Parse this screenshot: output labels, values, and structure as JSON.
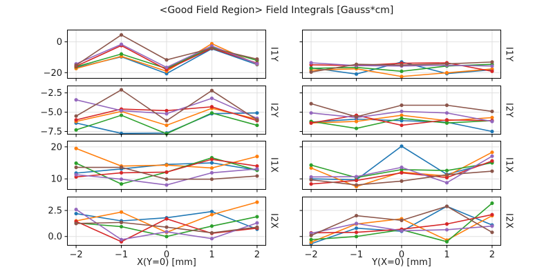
{
  "chart_data": {
    "type": "line",
    "title": "<Good Field Region> Field Integrals [Gauss*cm]",
    "units": "Gauss*cm",
    "grid": true,
    "legend": "none",
    "marker": "circle",
    "x": [
      -2,
      -1,
      0,
      1,
      2
    ],
    "xlim": [
      -2.2,
      2.2
    ],
    "xticks": [
      -2,
      -1,
      0,
      1,
      2
    ],
    "xtick_labels": [
      "−2",
      "−1",
      "0",
      "1",
      "2"
    ],
    "series_colors": [
      "#1f77b4",
      "#ff7f0e",
      "#2ca02c",
      "#d62728",
      "#9467bd",
      "#8c564b"
    ],
    "columns": [
      {
        "xlabel": "X(Y=0) [mm]"
      },
      {
        "xlabel": "Y(X=0) [mm]"
      }
    ],
    "rows": [
      {
        "label": "I1Y",
        "ylim": [
          -23.9,
          7.9
        ],
        "ytick_values": [
          0,
          -20
        ],
        "ytick_labels": [
          "0",
          "−20"
        ],
        "left": {
          "series": [
            [
              -16.8,
              -9.7,
              -20.6,
              -4.5,
              -14.8
            ],
            [
              -17.3,
              -9.4,
              -19.1,
              -1.2,
              -14.5
            ],
            [
              -16.2,
              -7.9,
              -17.3,
              -3.5,
              -12.1
            ],
            [
              -15.8,
              -2.4,
              -18.0,
              -4.2,
              -13.8
            ],
            [
              -14.3,
              -1.6,
              -16.6,
              -2.7,
              -14.2
            ],
            [
              -15.2,
              4.5,
              -11.7,
              -4.2,
              -11.2
            ]
          ]
        },
        "right": {
          "series": [
            [
              -16.9,
              -20.9,
              -13.1,
              -20.6,
              -18.1
            ],
            [
              -18.4,
              -17.5,
              -22.5,
              -20.1,
              -17.6
            ],
            [
              -17.2,
              -16.6,
              -19.1,
              -15.7,
              -14.6
            ],
            [
              -14.9,
              -15.4,
              -13.9,
              -13.6,
              -19.1
            ],
            [
              -13.6,
              -15.4,
              -15.7,
              -15.2,
              -15.7
            ],
            [
              -19.6,
              -14.6,
              -15.1,
              -14.3,
              -13.1
            ]
          ]
        }
      },
      {
        "label": "I2Y",
        "ylim": [
          -7.9,
          -1.55
        ],
        "ytick_values": [
          -2.5,
          -5.0,
          -7.5
        ],
        "ytick_labels": [
          "−2.5",
          "−5.0",
          "−7.5"
        ],
        "left": {
          "series": [
            [
              -6.4,
              -7.75,
              -7.7,
              -5.2,
              -5.1
            ],
            [
              -6.2,
              -4.9,
              -6.7,
              -4.5,
              -5.9
            ],
            [
              -7.3,
              -5.4,
              -7.8,
              -5.1,
              -6.7
            ],
            [
              -6.0,
              -4.6,
              -4.8,
              -4.3,
              -6.1
            ],
            [
              -3.4,
              -4.8,
              -5.2,
              -3.2,
              -5.8
            ],
            [
              -5.5,
              -2.1,
              -6.1,
              -2.2,
              -6.0
            ]
          ]
        },
        "right": {
          "series": [
            [
              -6.3,
              -5.9,
              -6.1,
              -6.3,
              -7.5
            ],
            [
              -6.4,
              -6.2,
              -5.4,
              -6.1,
              -5.7
            ],
            [
              -6.2,
              -7.1,
              -5.8,
              -6.4,
              -6.1
            ],
            [
              -6.4,
              -5.4,
              -6.7,
              -6.0,
              -6.1
            ],
            [
              -5.1,
              -5.7,
              -4.9,
              -5.1,
              -6.2
            ],
            [
              -3.9,
              -5.6,
              -4.1,
              -4.1,
              -4.9
            ]
          ]
        }
      },
      {
        "label": "I1X",
        "ylim": [
          6.6,
          21.9
        ],
        "ytick_values": [
          20,
          10
        ],
        "ytick_labels": [
          "20",
          "10"
        ],
        "left": {
          "series": [
            [
              11.8,
              13.1,
              14.5,
              15.0,
              12.7
            ],
            [
              19.5,
              14.0,
              14.3,
              13.4,
              17.0
            ],
            [
              14.9,
              8.4,
              12.1,
              16.6,
              12.7
            ],
            [
              10.6,
              11.9,
              12.1,
              16.1,
              14.0
            ],
            [
              11.3,
              9.9,
              8.1,
              11.9,
              13.1
            ],
            [
              13.6,
              13.6,
              9.9,
              9.9,
              10.9
            ]
          ]
        },
        "right": {
          "series": [
            [
              10.0,
              9.7,
              20.2,
              11.4,
              15.2
            ],
            [
              13.4,
              7.6,
              12.1,
              10.9,
              18.3
            ],
            [
              14.3,
              10.4,
              12.9,
              12.6,
              15.0
            ],
            [
              8.4,
              9.5,
              11.9,
              10.4,
              15.6
            ],
            [
              10.6,
              10.7,
              13.6,
              8.8,
              17.1
            ],
            [
              9.7,
              8.1,
              9.3,
              11.3,
              12.4
            ]
          ]
        }
      },
      {
        "label": "I2X",
        "ylim": [
          -0.88,
          3.83
        ],
        "ytick_values": [
          2.5,
          0.0
        ],
        "ytick_labels": [
          "2.5",
          "0.0"
        ],
        "left": {
          "series": [
            [
              2.2,
              1.5,
              1.8,
              2.4,
              0.7
            ],
            [
              1.5,
              2.35,
              0.4,
              2.1,
              3.3
            ],
            [
              1.3,
              0.95,
              0.0,
              1.0,
              1.9
            ],
            [
              1.45,
              -0.5,
              1.7,
              0.3,
              0.8
            ],
            [
              2.6,
              -0.3,
              0.45,
              -0.2,
              1.3
            ],
            [
              1.25,
              1.35,
              0.9,
              0.35,
              0.9
            ]
          ]
        },
        "right": {
          "series": [
            [
              -0.7,
              0.8,
              0.5,
              2.9,
              1.1
            ],
            [
              -0.55,
              1.2,
              1.7,
              -0.35,
              2.0
            ],
            [
              -0.3,
              0.0,
              0.65,
              -0.5,
              3.2
            ],
            [
              0.35,
              0.4,
              0.7,
              1.2,
              2.1
            ],
            [
              0.3,
              1.25,
              0.55,
              0.65,
              1.0
            ],
            [
              0.1,
              2.0,
              1.55,
              2.9,
              0.4
            ]
          ]
        }
      }
    ],
    "style": {
      "grid_color": "#e0e0e0",
      "spine_color": "#000000",
      "text_color": "#1a1a1a"
    }
  }
}
